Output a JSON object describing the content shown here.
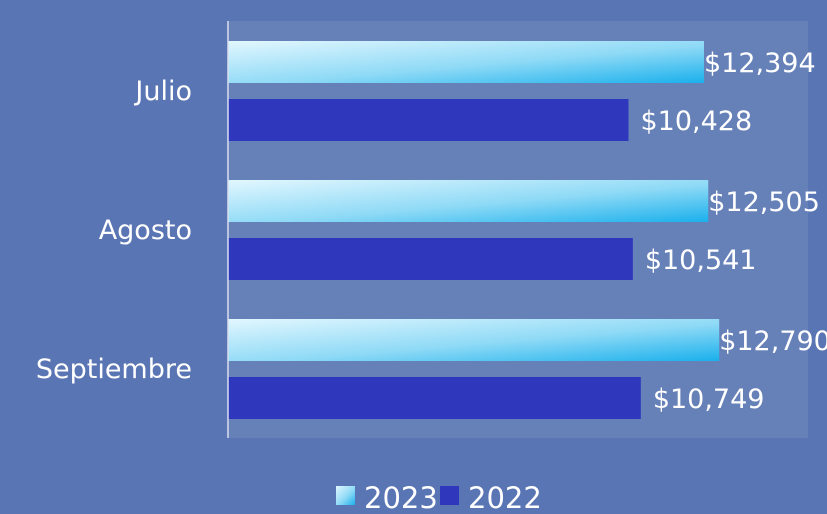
{
  "colors": {
    "background": "#5a75b3",
    "plot_area": "#6680b8",
    "series_2023_light": "#d8f2fb",
    "series_2023_dark": "#1fb4ec",
    "series_2022": "#2f37bd",
    "axis": "#d8def0",
    "text": "#ffffff"
  },
  "chart_data": {
    "type": "bar",
    "orientation": "horizontal",
    "categories": [
      "Julio",
      "Agosto",
      "Septiembre"
    ],
    "series": [
      {
        "name": "2023",
        "values": [
          12394,
          12505,
          12790
        ],
        "labels": [
          "$12,394",
          "$12,505",
          "$12,790"
        ]
      },
      {
        "name": "2022",
        "values": [
          10428,
          10541,
          10749
        ],
        "labels": [
          "$10,428",
          "$10,541",
          "$10,749"
        ]
      }
    ],
    "title": "",
    "xlabel": "",
    "ylabel": "",
    "xlim": [
      0,
      14000
    ],
    "grid": false,
    "legend": "bottom"
  }
}
